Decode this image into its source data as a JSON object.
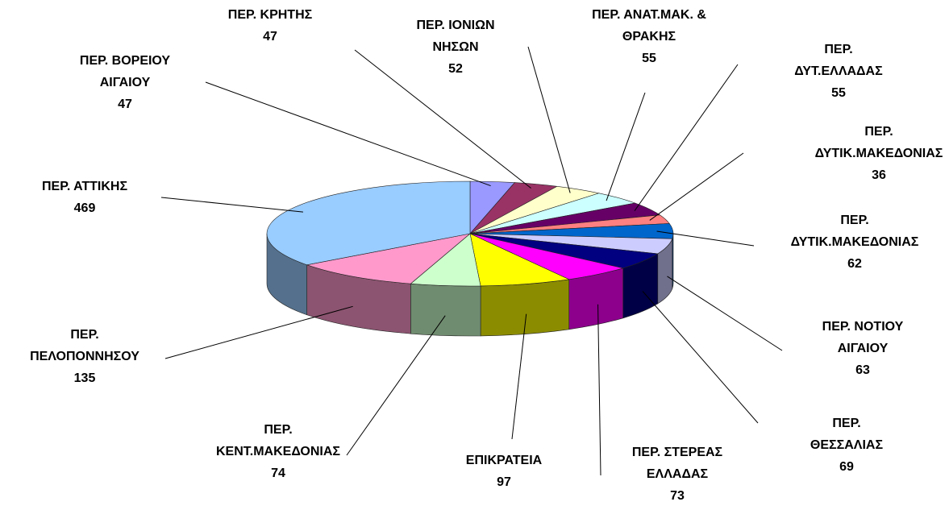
{
  "chart_data": {
    "type": "pie3d",
    "categories": [
      "ΠΕΡ. ΒΟΡΕΙΟΥ\nΑΙΓΑΙΟΥ",
      "ΠΕΡ. ΚΡΗΤΗΣ",
      "ΠΕΡ. ΙΟΝΙΩΝ\nΝΗΣΩΝ",
      "ΠΕΡ. ΑΝΑΤ.ΜΑΚ. &\nΘΡΑΚΗΣ",
      "ΠΕΡ. ΔΥΤ.ΕΛΛΑΔΑΣ",
      "ΠΕΡ.\nΔΥΤΙΚ.ΜΑΚΕΔΟΝΙΑΣ",
      "ΠΕΡ.\nΔΥΤΙΚ.ΜΑΚΕΔΟΝΙΑΣ",
      "ΠΕΡ. ΝΟΤΙΟΥ\nΑΙΓΑΙΟΥ",
      "ΠΕΡ. ΘΕΣΣΑΛΙΑΣ",
      "ΠΕΡ. ΣΤΕΡΕΑΣ\nΕΛΛΑΔΑΣ",
      "ΕΠΙΚΡΑΤΕΙΑ",
      "ΠΕΡ.\nΚΕΝΤ.ΜΑΚΕΔΟΝΙΑΣ",
      "ΠΕΡ.\nΠΕΛΟΠΟΝΝΗΣΟΥ",
      "ΠΕΡ. ΑΤΤΙΚΗΣ"
    ],
    "values": [
      47,
      47,
      52,
      55,
      55,
      36,
      62,
      63,
      69,
      73,
      97,
      74,
      135,
      469
    ],
    "colors": [
      "#9999ff",
      "#993366",
      "#ffffcc",
      "#ccffff",
      "#660066",
      "#ff8080",
      "#0066cc",
      "#ccccff",
      "#000080",
      "#ff00ff",
      "#ffff00",
      "#ccffcc",
      "#ff99cc",
      "#99ccff"
    ]
  }
}
